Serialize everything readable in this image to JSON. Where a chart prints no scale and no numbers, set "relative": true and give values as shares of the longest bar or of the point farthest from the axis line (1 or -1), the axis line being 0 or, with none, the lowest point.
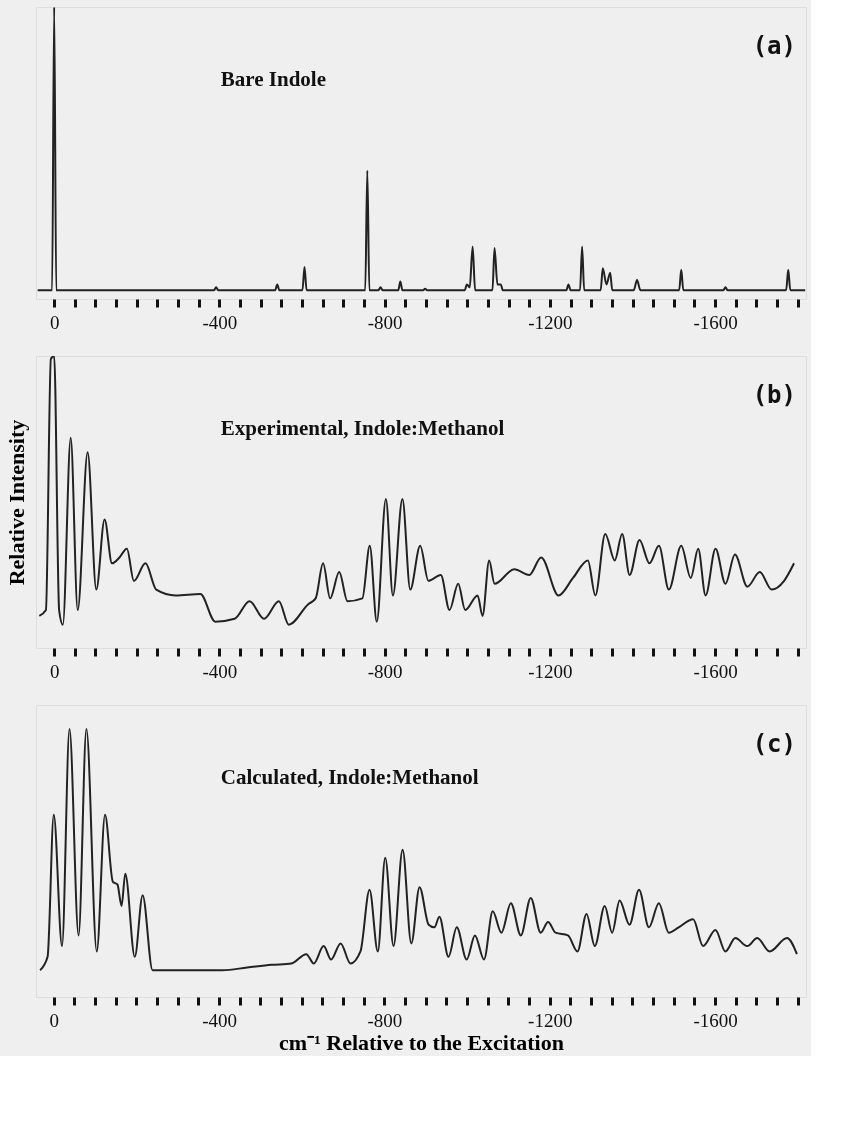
{
  "chart_data": [
    {
      "type": "line",
      "relative": true,
      "xlim": [
        44,
        -1820
      ],
      "xticks": [
        0,
        {
          "value": -50,
          "label": null
        },
        {
          "value": -100,
          "label": null
        },
        {
          "value": -150,
          "label": null
        },
        {
          "value": -200,
          "label": null
        },
        {
          "value": -250,
          "label": null
        },
        {
          "value": -300,
          "label": null
        },
        {
          "value": -350,
          "label": null
        },
        -400,
        {
          "value": -450,
          "label": null
        },
        {
          "value": -500,
          "label": null
        },
        {
          "value": -550,
          "label": null
        },
        {
          "value": -600,
          "label": null
        },
        {
          "value": -650,
          "label": null
        },
        {
          "value": -700,
          "label": null
        },
        {
          "value": -750,
          "label": null
        },
        -800,
        {
          "value": -850,
          "label": null
        },
        {
          "value": -900,
          "label": null
        },
        {
          "value": -950,
          "label": null
        },
        {
          "value": -1000,
          "label": null
        },
        {
          "value": -1050,
          "label": null
        },
        {
          "value": -1100,
          "label": null
        },
        {
          "value": -1150,
          "label": null
        },
        -1200,
        {
          "value": -1250,
          "label": null
        },
        {
          "value": -1300,
          "label": null
        },
        {
          "value": -1350,
          "label": null
        },
        {
          "value": -1400,
          "label": null
        },
        {
          "value": -1450,
          "label": null
        },
        {
          "value": -1500,
          "label": null
        },
        {
          "value": -1550,
          "label": null
        },
        -1600,
        {
          "value": -1650,
          "label": null
        },
        {
          "value": -1700,
          "label": null
        },
        {
          "value": -1750,
          "label": null
        },
        {
          "value": -1800,
          "label": null
        }
      ],
      "tick_labels": "x",
      "grid": false,
      "annotations": [
        "(a)",
        "Bare Indole"
      ],
      "series": [
        {
          "color": "#222222",
          "x": [
            40,
            5,
            0,
            -5,
            -387,
            -392,
            -397,
            -535,
            -540,
            -545,
            -601,
            -606,
            -611,
            -753,
            -758,
            -763,
            -785,
            -790,
            -795,
            -833,
            -838,
            -843,
            -893,
            -898,
            -903,
            -994,
            -999,
            -1006,
            -1013,
            -1019,
            -1061,
            -1066,
            -1073,
            -1081,
            -1086,
            -1240,
            -1245,
            -1250,
            -1273,
            -1278,
            -1283,
            -1323,
            -1328,
            -1337,
            -1346,
            -1351,
            -1403,
            -1411,
            -1419,
            -1513,
            -1518,
            -1523,
            -1620,
            -1625,
            -1630,
            -1772,
            -1777,
            -1782,
            -1818
          ],
          "values": [
            0.03,
            0.03,
            1,
            0.03,
            0.03,
            0.04,
            0.03,
            0.03,
            0.05,
            0.03,
            0.03,
            0.11,
            0.03,
            0.03,
            0.44,
            0.03,
            0.03,
            0.04,
            0.03,
            0.03,
            0.06,
            0.03,
            0.03,
            0.035,
            0.03,
            0.03,
            0.05,
            0.04,
            0.18,
            0.03,
            0.03,
            0.175,
            0.05,
            0.05,
            0.03,
            0.03,
            0.05,
            0.03,
            0.03,
            0.18,
            0.03,
            0.03,
            0.105,
            0.05,
            0.09,
            0.03,
            0.03,
            0.065,
            0.03,
            0.03,
            0.1,
            0.03,
            0.03,
            0.04,
            0.03,
            0.03,
            0.1,
            0.03,
            0.03
          ]
        }
      ]
    },
    {
      "type": "line",
      "relative": true,
      "xlim": [
        44,
        -1820
      ],
      "xticks": [
        0,
        {
          "value": -50,
          "label": null
        },
        {
          "value": -100,
          "label": null
        },
        {
          "value": -150,
          "label": null
        },
        {
          "value": -200,
          "label": null
        },
        {
          "value": -250,
          "label": null
        },
        {
          "value": -300,
          "label": null
        },
        {
          "value": -350,
          "label": null
        },
        -400,
        {
          "value": -450,
          "label": null
        },
        {
          "value": -500,
          "label": null
        },
        {
          "value": -550,
          "label": null
        },
        {
          "value": -600,
          "label": null
        },
        {
          "value": -650,
          "label": null
        },
        {
          "value": -700,
          "label": null
        },
        {
          "value": -750,
          "label": null
        },
        -800,
        {
          "value": -850,
          "label": null
        },
        {
          "value": -900,
          "label": null
        },
        {
          "value": -950,
          "label": null
        },
        {
          "value": -1000,
          "label": null
        },
        {
          "value": -1050,
          "label": null
        },
        {
          "value": -1100,
          "label": null
        },
        {
          "value": -1150,
          "label": null
        },
        -1200,
        {
          "value": -1250,
          "label": null
        },
        {
          "value": -1300,
          "label": null
        },
        {
          "value": -1350,
          "label": null
        },
        {
          "value": -1400,
          "label": null
        },
        {
          "value": -1450,
          "label": null
        },
        {
          "value": -1500,
          "label": null
        },
        {
          "value": -1550,
          "label": null
        },
        -1600,
        {
          "value": -1650,
          "label": null
        },
        {
          "value": -1700,
          "label": null
        },
        {
          "value": -1750,
          "label": null
        },
        {
          "value": -1800,
          "label": null
        }
      ],
      "tick_labels": "x",
      "grid": false,
      "ylabel": "Relative Intensity",
      "annotations": [
        "(b)",
        "Experimental, Indole:Methanol"
      ],
      "series": [
        {
          "color": "#222222",
          "x": [
            36,
            20,
            8,
            0,
            -12,
            -21,
            -40,
            -57,
            -81,
            -102,
            -122,
            -140,
            -158,
            -176,
            -193,
            -221,
            -247,
            -294,
            -354,
            -390,
            -437,
            -473,
            -508,
            -544,
            -568,
            -615,
            -633,
            -651,
            -668,
            -690,
            -710,
            -746,
            -764,
            -781,
            -803,
            -820,
            -843,
            -862,
            -886,
            -906,
            -936,
            -957,
            -978,
            -995,
            -1025,
            -1037,
            -1053,
            -1066,
            -1114,
            -1150,
            -1179,
            -1221,
            -1256,
            -1292,
            -1310,
            -1334,
            -1357,
            -1375,
            -1393,
            -1417,
            -1441,
            -1464,
            -1488,
            -1518,
            -1541,
            -1559,
            -1577,
            -1601,
            -1625,
            -1648,
            -1678,
            -1708,
            -1737,
            -1767,
            -1791
          ],
          "values": [
            0.11,
            0.13,
            0.99,
            1,
            0.13,
            0.08,
            0.72,
            0.13,
            0.67,
            0.2,
            0.44,
            0.29,
            0.31,
            0.34,
            0.23,
            0.29,
            0.2,
            0.18,
            0.185,
            0.09,
            0.1,
            0.16,
            0.1,
            0.16,
            0.08,
            0.15,
            0.17,
            0.29,
            0.17,
            0.26,
            0.16,
            0.17,
            0.35,
            0.09,
            0.51,
            0.18,
            0.51,
            0.2,
            0.35,
            0.23,
            0.25,
            0.13,
            0.22,
            0.13,
            0.18,
            0.11,
            0.3,
            0.22,
            0.27,
            0.25,
            0.31,
            0.18,
            0.24,
            0.3,
            0.18,
            0.39,
            0.3,
            0.39,
            0.25,
            0.37,
            0.29,
            0.35,
            0.2,
            0.35,
            0.24,
            0.34,
            0.18,
            0.34,
            0.22,
            0.32,
            0.21,
            0.26,
            0.2,
            0.23,
            0.29
          ]
        }
      ]
    },
    {
      "type": "line",
      "relative": true,
      "xlim": [
        43,
        -1820
      ],
      "xticks": [
        0,
        {
          "value": -50,
          "label": null
        },
        {
          "value": -100,
          "label": null
        },
        {
          "value": -150,
          "label": null
        },
        {
          "value": -200,
          "label": null
        },
        {
          "value": -250,
          "label": null
        },
        {
          "value": -300,
          "label": null
        },
        {
          "value": -350,
          "label": null
        },
        -400,
        {
          "value": -450,
          "label": null
        },
        {
          "value": -500,
          "label": null
        },
        {
          "value": -550,
          "label": null
        },
        {
          "value": -600,
          "label": null
        },
        {
          "value": -650,
          "label": null
        },
        {
          "value": -700,
          "label": null
        },
        {
          "value": -750,
          "label": null
        },
        -800,
        {
          "value": -850,
          "label": null
        },
        {
          "value": -900,
          "label": null
        },
        {
          "value": -950,
          "label": null
        },
        {
          "value": -1000,
          "label": null
        },
        {
          "value": -1050,
          "label": null
        },
        {
          "value": -1100,
          "label": null
        },
        {
          "value": -1150,
          "label": null
        },
        -1200,
        {
          "value": -1250,
          "label": null
        },
        {
          "value": -1300,
          "label": null
        },
        {
          "value": -1350,
          "label": null
        },
        {
          "value": -1400,
          "label": null
        },
        {
          "value": -1450,
          "label": null
        },
        {
          "value": -1500,
          "label": null
        },
        {
          "value": -1550,
          "label": null
        },
        -1600,
        {
          "value": -1650,
          "label": null
        },
        {
          "value": -1700,
          "label": null
        },
        {
          "value": -1750,
          "label": null
        },
        {
          "value": -1800,
          "label": null
        }
      ],
      "tick_labels": "x",
      "grid": false,
      "xlabel": "cm⁻¹ Relative to the Excitation",
      "annotations": [
        "(c)",
        "Calculated, Indole:Methanol"
      ],
      "series": [
        {
          "color": "#222222",
          "x": [
            33,
            15,
            0,
            -20,
            -38,
            -60,
            -79,
            -104,
            -124,
            -143,
            -154,
            -164,
            -173,
            -196,
            -215,
            -239,
            -289,
            -408,
            -468,
            -527,
            -575,
            -611,
            -629,
            -653,
            -671,
            -694,
            -718,
            -742,
            -764,
            -784,
            -802,
            -822,
            -844,
            -865,
            -885,
            -907,
            -921,
            -933,
            -955,
            -975,
            -999,
            -1019,
            -1041,
            -1062,
            -1083,
            -1106,
            -1130,
            -1154,
            -1178,
            -1196,
            -1214,
            -1244,
            -1267,
            -1289,
            -1309,
            -1333,
            -1351,
            -1369,
            -1393,
            -1416,
            -1440,
            -1464,
            -1488,
            -1512,
            -1547,
            -1571,
            -1601,
            -1625,
            -1649,
            -1678,
            -1702,
            -1732,
            -1774,
            -1798
          ],
          "values": [
            0.1,
            0.15,
            0.68,
            0.19,
            1,
            0.23,
            1,
            0.17,
            0.68,
            0.43,
            0.42,
            0.34,
            0.46,
            0.15,
            0.38,
            0.1,
            0.1,
            0.1,
            0.11,
            0.12,
            0.125,
            0.16,
            0.125,
            0.19,
            0.14,
            0.2,
            0.125,
            0.17,
            0.4,
            0.17,
            0.52,
            0.19,
            0.55,
            0.2,
            0.41,
            0.27,
            0.26,
            0.3,
            0.15,
            0.26,
            0.14,
            0.23,
            0.14,
            0.32,
            0.24,
            0.35,
            0.23,
            0.37,
            0.24,
            0.28,
            0.24,
            0.23,
            0.17,
            0.31,
            0.19,
            0.34,
            0.24,
            0.36,
            0.27,
            0.4,
            0.26,
            0.35,
            0.24,
            0.26,
            0.29,
            0.19,
            0.25,
            0.17,
            0.22,
            0.19,
            0.22,
            0.17,
            0.22,
            0.16
          ]
        }
      ]
    }
  ]
}
